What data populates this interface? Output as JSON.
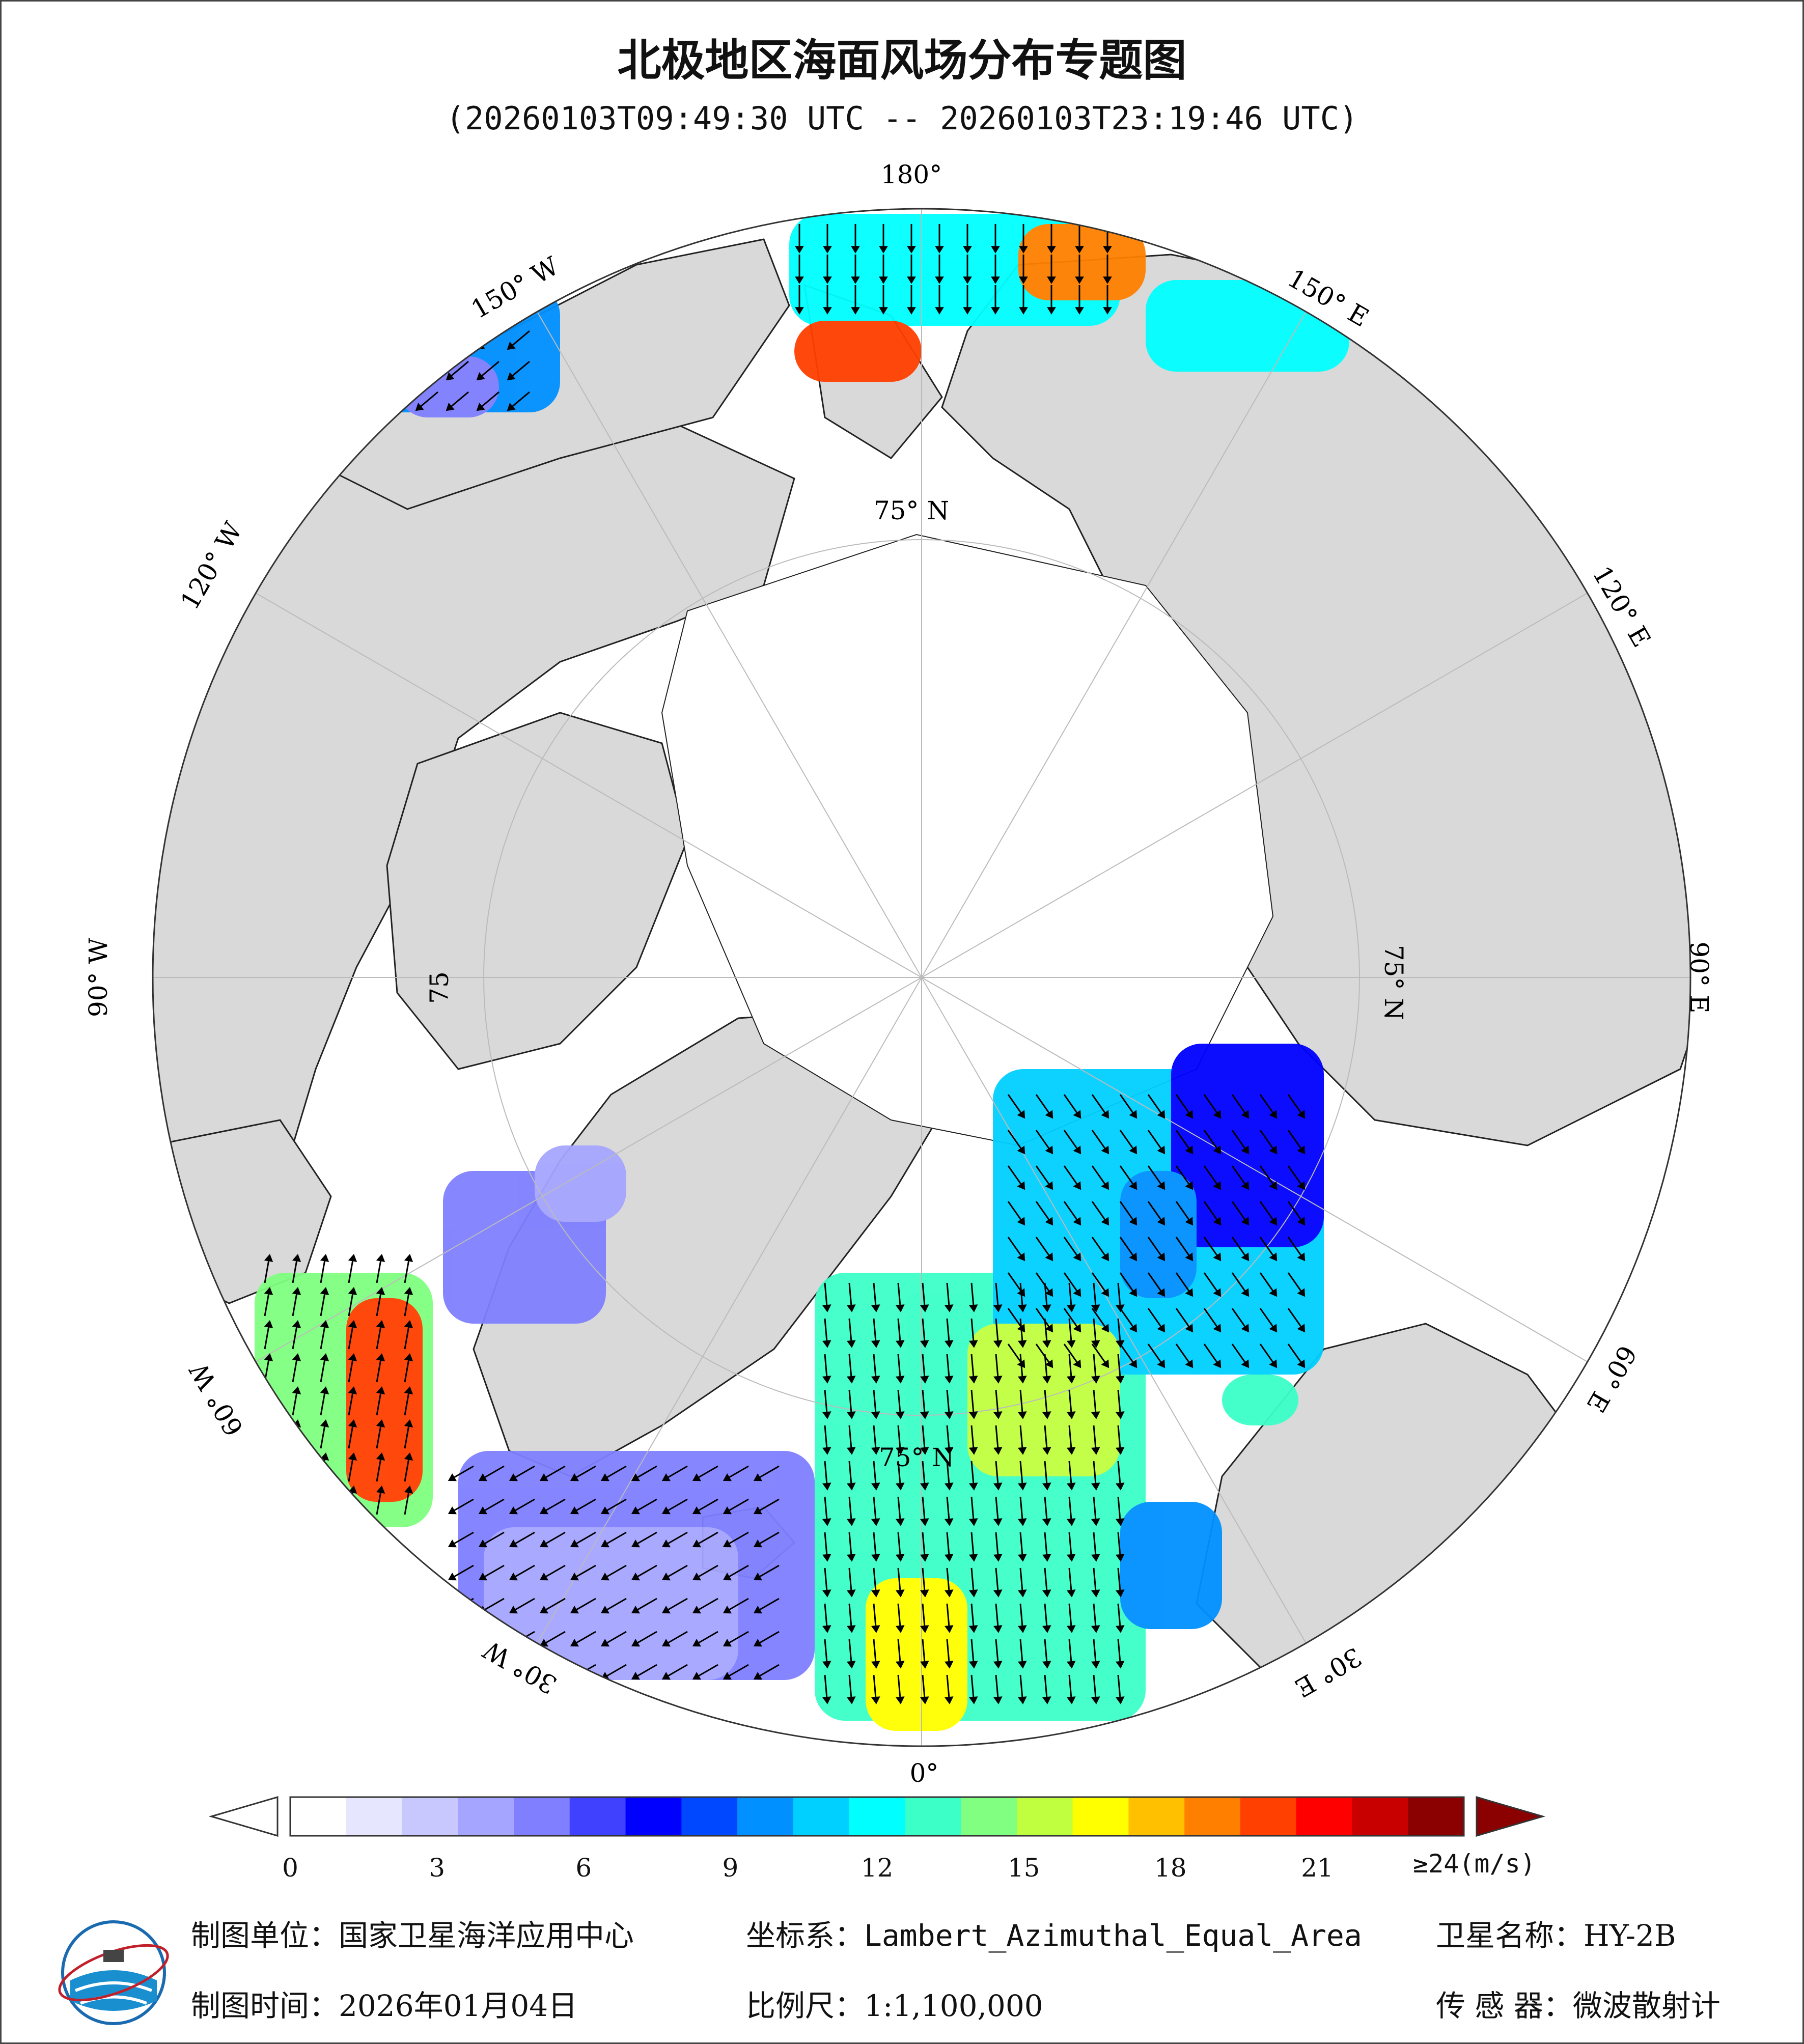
{
  "map": {
    "title": "北极地区海面风场分布专题图",
    "time_range": "(20260103T09:49:30 UTC -- 20260103T23:19:46 UTC)",
    "meridian_labels": {
      "lon_180": "180°",
      "lon_150w": "150° W",
      "lon_150e": "150° E",
      "lon_120w": "120° W",
      "lon_120e": "120° E",
      "lon_90w": "90° W",
      "lon_90e": "90° E",
      "lon_60w": "60° W",
      "lon_60e": "60° E",
      "lon_30w": "30° W",
      "lon_30e": "30° E",
      "lon_0": "0°"
    },
    "parallel_labels": {
      "lat75_top": "75° N",
      "lat75_left": "75",
      "lat75_right": "75° N",
      "lat75_bottom": "75° N"
    },
    "colors": {
      "land": "#d9d9d9",
      "ocean_no_data": "#ffffff",
      "ice": "#ffffff",
      "arrow": "#000000",
      "coast": "#222222"
    }
  },
  "colorbar": {
    "unit_label": "≥24(m/s)",
    "ticks": [
      "0",
      "3",
      "6",
      "9",
      "12",
      "15",
      "18",
      "21"
    ],
    "tick_values": [
      0,
      3,
      6,
      9,
      12,
      15,
      18,
      21
    ],
    "min": 0,
    "max": 24,
    "colors": [
      "#ffffff",
      "#e6e6ff",
      "#c8c8ff",
      "#a5a5ff",
      "#7f7fff",
      "#4040ff",
      "#0000ff",
      "#0048ff",
      "#0090ff",
      "#00d0ff",
      "#00ffff",
      "#3cffc8",
      "#80ff80",
      "#c0ff40",
      "#ffff00",
      "#ffc000",
      "#ff8000",
      "#ff4000",
      "#ff0000",
      "#c80000",
      "#8b0000"
    ]
  },
  "footer": {
    "org_label": "制图单位：国家卫星海洋应用中心",
    "date_label": "制图时间：2026年01月04日",
    "crs_label": "坐标系：",
    "crs_value": "Lambert_Azimuthal_Equal_Area",
    "scale_label": "比例尺：",
    "scale_value": "1:1,100,000",
    "satellite_label": "卫星名称：",
    "satellite_value": "HY-2B",
    "sensor_label": "传 感 器：",
    "sensor_value": "微波散射计"
  }
}
